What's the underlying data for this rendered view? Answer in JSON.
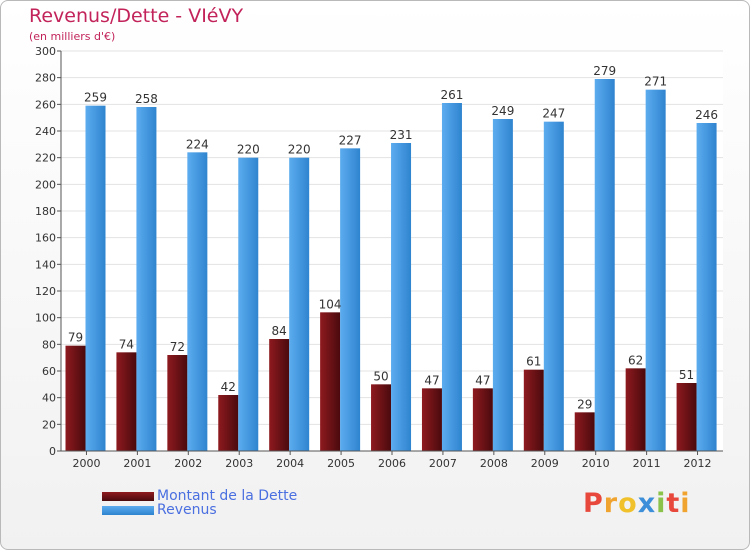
{
  "title": "Revenus/Dette - VIéVY",
  "subtitle": "(en milliers d'€)",
  "brand": {
    "letters": [
      "P",
      "r",
      "o",
      "x",
      "i",
      "t",
      "i"
    ],
    "colors": [
      "#e8483b",
      "#f0a32e",
      "#f0c12b",
      "#3c8fd8",
      "#8bc34a",
      "#e8483b",
      "#f0a32e"
    ]
  },
  "legend": [
    {
      "label": "Montant de la Dette",
      "color": "#6b0f12"
    },
    {
      "label": "Revenus",
      "color": "#3d93dd"
    }
  ],
  "chart_data": {
    "type": "bar",
    "title": "Revenus/Dette - VIéVY",
    "subtitle": "(en milliers d'€)",
    "categories": [
      "2000",
      "2001",
      "2002",
      "2003",
      "2004",
      "2005",
      "2006",
      "2007",
      "2008",
      "2009",
      "2010",
      "2011",
      "2012"
    ],
    "series": [
      {
        "name": "Montant de la Dette",
        "color": "#6b0f12",
        "values": [
          79,
          74,
          72,
          42,
          84,
          104,
          50,
          47,
          47,
          61,
          29,
          62,
          51
        ]
      },
      {
        "name": "Revenus",
        "color": "#3d93dd",
        "values": [
          259,
          258,
          224,
          220,
          220,
          227,
          231,
          261,
          249,
          247,
          279,
          271,
          246
        ]
      }
    ],
    "ylim": [
      0,
      300
    ],
    "yticks": [
      0,
      20,
      40,
      60,
      80,
      100,
      120,
      140,
      160,
      180,
      200,
      220,
      240,
      260,
      280,
      300
    ],
    "grid": true,
    "legend_position": "bottom-left"
  }
}
